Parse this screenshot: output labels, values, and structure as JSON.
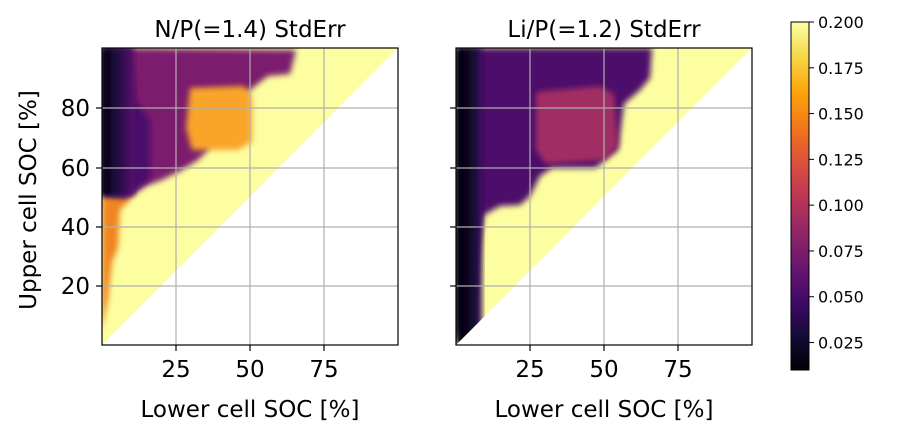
{
  "chart_data": {
    "type": "heatmap",
    "colormap": "inferno",
    "panels": [
      {
        "title": "N/P(=1.4) StdErr",
        "xlabel": "Lower cell SOC [%]",
        "ylabel": "Upper cell SOC [%]",
        "xlim": [
          0,
          100
        ],
        "ylim": [
          0,
          100
        ],
        "xticks": [
          "25",
          "50",
          "75"
        ],
        "yticks": [
          "20",
          "40",
          "60",
          "80"
        ],
        "grid": true,
        "regions": [
          {
            "desc": "left dark band",
            "value_range": [
              0.01,
              0.06
            ]
          },
          {
            "desc": "purple mid region x 15-55, y 65-97",
            "value_range": [
              0.06,
              0.11
            ]
          },
          {
            "desc": "orange patch x 30-50, y 68-87",
            "value_range": [
              0.15,
              0.16
            ]
          },
          {
            "desc": "orange edge x 2-8, y 5-48",
            "value_range": [
              0.14,
              0.17
            ]
          },
          {
            "desc": "yellow fill near diagonal",
            "value": 0.2
          }
        ]
      },
      {
        "title": "Li/P(=1.2) StdErr",
        "xlabel": "Lower cell SOC [%]",
        "ylabel": "",
        "xlim": [
          0,
          100
        ],
        "ylim": [
          0,
          100
        ],
        "xticks": [
          "25",
          "50",
          "75"
        ],
        "yticks": [],
        "grid": true,
        "regions": [
          {
            "desc": "left dark band",
            "value_range": [
              0.01,
              0.05
            ]
          },
          {
            "desc": "purple region",
            "value_range": [
              0.06,
              0.09
            ]
          },
          {
            "desc": "red-violet patch x 30-55, y 62-88",
            "value_range": [
              0.1,
              0.11
            ]
          },
          {
            "desc": "yellow fill near diagonal",
            "value": 0.2
          }
        ]
      }
    ],
    "colorbar": {
      "min": 0.01,
      "max": 0.2,
      "ticks": [
        "0.025",
        "0.050",
        "0.075",
        "0.100",
        "0.125",
        "0.150",
        "0.175",
        "0.200"
      ]
    }
  }
}
